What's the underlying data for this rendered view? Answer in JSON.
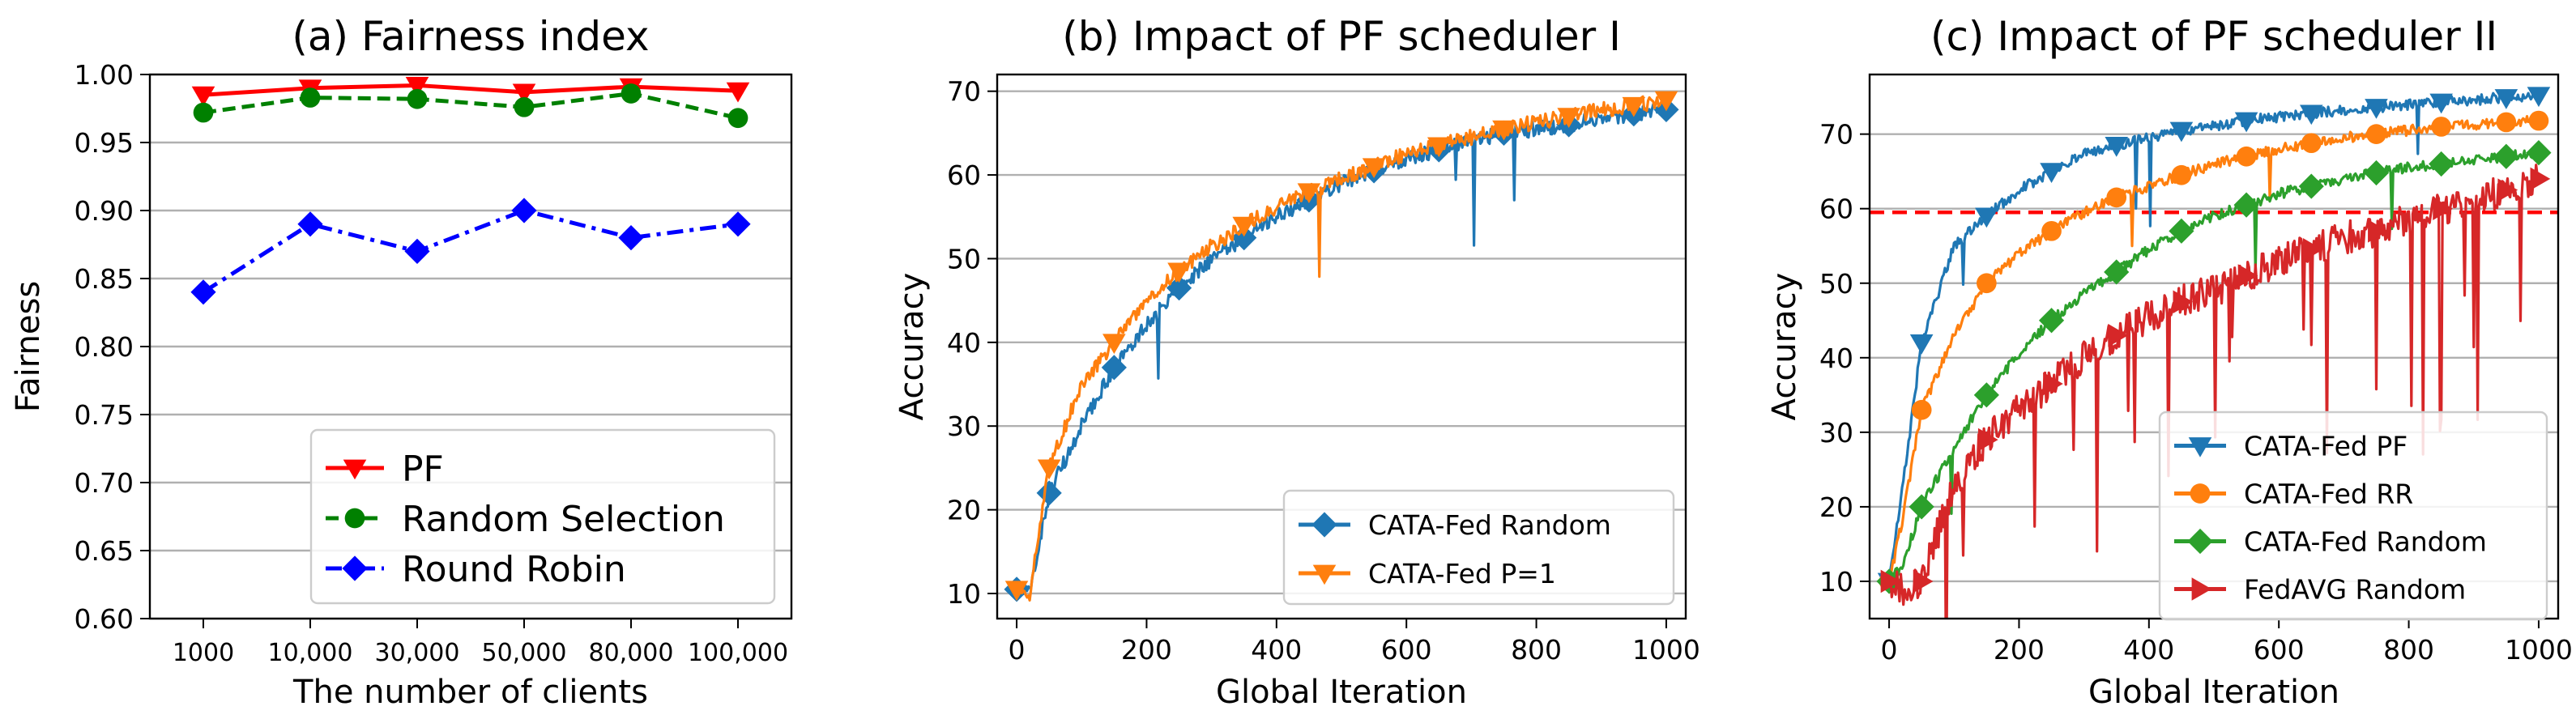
{
  "chart_data": [
    {
      "type": "line",
      "title": "(a) Fairness index",
      "xlabel": "The number of clients",
      "ylabel": "Fairness",
      "categories": [
        "1000",
        "10,000",
        "30,000",
        "50,000",
        "80,000",
        "100,000"
      ],
      "ylim": [
        0.6,
        1.0
      ],
      "yticks": [
        "0.60",
        "0.65",
        "0.70",
        "0.75",
        "0.80",
        "0.85",
        "0.90",
        "0.95",
        "1.00"
      ],
      "ytick_values": [
        0.6,
        0.65,
        0.7,
        0.75,
        0.8,
        0.85,
        0.9,
        0.95,
        1.0
      ],
      "grid": "horizontal",
      "legend_position": "bottom-right",
      "series": [
        {
          "name": "PF",
          "values": [
            0.985,
            0.99,
            0.992,
            0.987,
            0.991,
            0.988
          ],
          "color": "#ff0000",
          "marker": "triangle-down",
          "dash": "solid"
        },
        {
          "name": "Random Selection",
          "values": [
            0.972,
            0.983,
            0.982,
            0.976,
            0.986,
            0.968
          ],
          "color": "#008000",
          "marker": "circle",
          "dash": "dashed"
        },
        {
          "name": "Round Robin",
          "values": [
            0.84,
            0.89,
            0.87,
            0.9,
            0.88,
            0.89
          ],
          "color": "#0000ff",
          "marker": "diamond",
          "dash": "dashdot"
        }
      ]
    },
    {
      "type": "line",
      "title": "(b) Impact of PF scheduler I",
      "xlabel": "Global Iteration",
      "ylabel": "Accuracy",
      "xlim": [
        -30,
        1030
      ],
      "ylim": [
        7,
        72
      ],
      "xticks": [
        0,
        200,
        400,
        600,
        800,
        1000
      ],
      "yticks": [
        10,
        20,
        30,
        40,
        50,
        60,
        70
      ],
      "grid": "horizontal",
      "legend_position": "bottom-right",
      "series": [
        {
          "name": "CATA-Fed Random",
          "color": "#1f77b4",
          "marker": "diamond",
          "x": [
            0,
            20,
            50,
            100,
            150,
            200,
            250,
            300,
            350,
            400,
            450,
            500,
            550,
            600,
            650,
            700,
            750,
            800,
            850,
            900,
            950,
            1000
          ],
          "values": [
            10.5,
            10.0,
            22.0,
            30.0,
            37.0,
            42.0,
            46.5,
            50.0,
            52.5,
            55.0,
            57.0,
            59.0,
            60.5,
            62.0,
            63.0,
            64.0,
            65.0,
            65.5,
            66.0,
            66.8,
            67.3,
            67.8
          ]
        },
        {
          "name": "CATA-Fed P=1",
          "color": "#ff7f0e",
          "marker": "triangle-down",
          "x": [
            0,
            20,
            50,
            100,
            150,
            200,
            250,
            300,
            350,
            400,
            450,
            500,
            550,
            600,
            650,
            700,
            750,
            800,
            850,
            900,
            950,
            1000
          ],
          "values": [
            10.5,
            10.0,
            25.0,
            35.0,
            40.0,
            45.0,
            48.5,
            51.5,
            54.0,
            56.0,
            58.0,
            59.5,
            61.0,
            62.5,
            63.5,
            64.5,
            65.5,
            66.3,
            67.0,
            67.8,
            68.3,
            69.0
          ]
        }
      ]
    },
    {
      "type": "line",
      "title": "(c) Impact of PF scheduler II",
      "xlabel": "Global Iteration",
      "ylabel": "Accuracy",
      "xlim": [
        -30,
        1030
      ],
      "ylim": [
        5,
        78
      ],
      "xticks": [
        0,
        200,
        400,
        600,
        800,
        1000
      ],
      "yticks": [
        10,
        20,
        30,
        40,
        50,
        60,
        70
      ],
      "grid": "horizontal",
      "reference_line": {
        "y": 59.5,
        "color": "#ff0000",
        "style": "dashed"
      },
      "legend_position": "bottom-right",
      "series": [
        {
          "name": "CATA-Fed PF",
          "color": "#1f77b4",
          "marker": "triangle-down",
          "x": [
            0,
            20,
            50,
            100,
            150,
            200,
            250,
            300,
            350,
            400,
            450,
            500,
            550,
            600,
            650,
            700,
            750,
            800,
            850,
            900,
            950,
            1000
          ],
          "values": [
            10.0,
            22.0,
            42.0,
            55.0,
            59.0,
            62.5,
            65.0,
            67.5,
            68.5,
            69.5,
            70.5,
            71.0,
            71.8,
            72.3,
            72.8,
            73.2,
            73.6,
            74.0,
            74.3,
            74.6,
            74.9,
            75.2
          ]
        },
        {
          "name": "CATA-Fed RR",
          "color": "#ff7f0e",
          "marker": "circle",
          "x": [
            0,
            20,
            50,
            100,
            150,
            200,
            250,
            300,
            350,
            400,
            450,
            500,
            550,
            600,
            650,
            700,
            750,
            800,
            850,
            900,
            950,
            1000
          ],
          "values": [
            10.0,
            18.0,
            33.0,
            43.0,
            50.0,
            54.0,
            57.0,
            59.5,
            61.5,
            63.0,
            64.5,
            66.0,
            67.0,
            68.0,
            68.8,
            69.5,
            70.0,
            70.5,
            71.0,
            71.3,
            71.6,
            71.8
          ]
        },
        {
          "name": "CATA-Fed Random",
          "color": "#2ca02c",
          "marker": "diamond",
          "x": [
            0,
            20,
            50,
            100,
            150,
            200,
            250,
            300,
            350,
            400,
            450,
            500,
            550,
            600,
            650,
            700,
            750,
            800,
            850,
            900,
            950,
            1000
          ],
          "values": [
            10.0,
            12.0,
            20.0,
            28.0,
            35.0,
            40.5,
            45.0,
            48.5,
            51.5,
            54.5,
            57.0,
            59.0,
            60.5,
            62.0,
            63.0,
            64.0,
            64.8,
            65.5,
            66.0,
            66.5,
            67.0,
            67.5
          ]
        },
        {
          "name": "FedAVG Random",
          "color": "#d62728",
          "marker": "triangle-right",
          "x": [
            0,
            20,
            50,
            100,
            150,
            200,
            250,
            300,
            350,
            400,
            450,
            500,
            550,
            600,
            650,
            700,
            750,
            800,
            850,
            900,
            950,
            1000
          ],
          "values": [
            10.0,
            9.0,
            10.0,
            23.0,
            29.0,
            33.0,
            36.5,
            40.0,
            43.0,
            45.5,
            47.5,
            49.0,
            51.0,
            53.0,
            54.5,
            56.0,
            57.0,
            58.5,
            60.0,
            61.0,
            62.5,
            64.0
          ]
        }
      ]
    }
  ]
}
